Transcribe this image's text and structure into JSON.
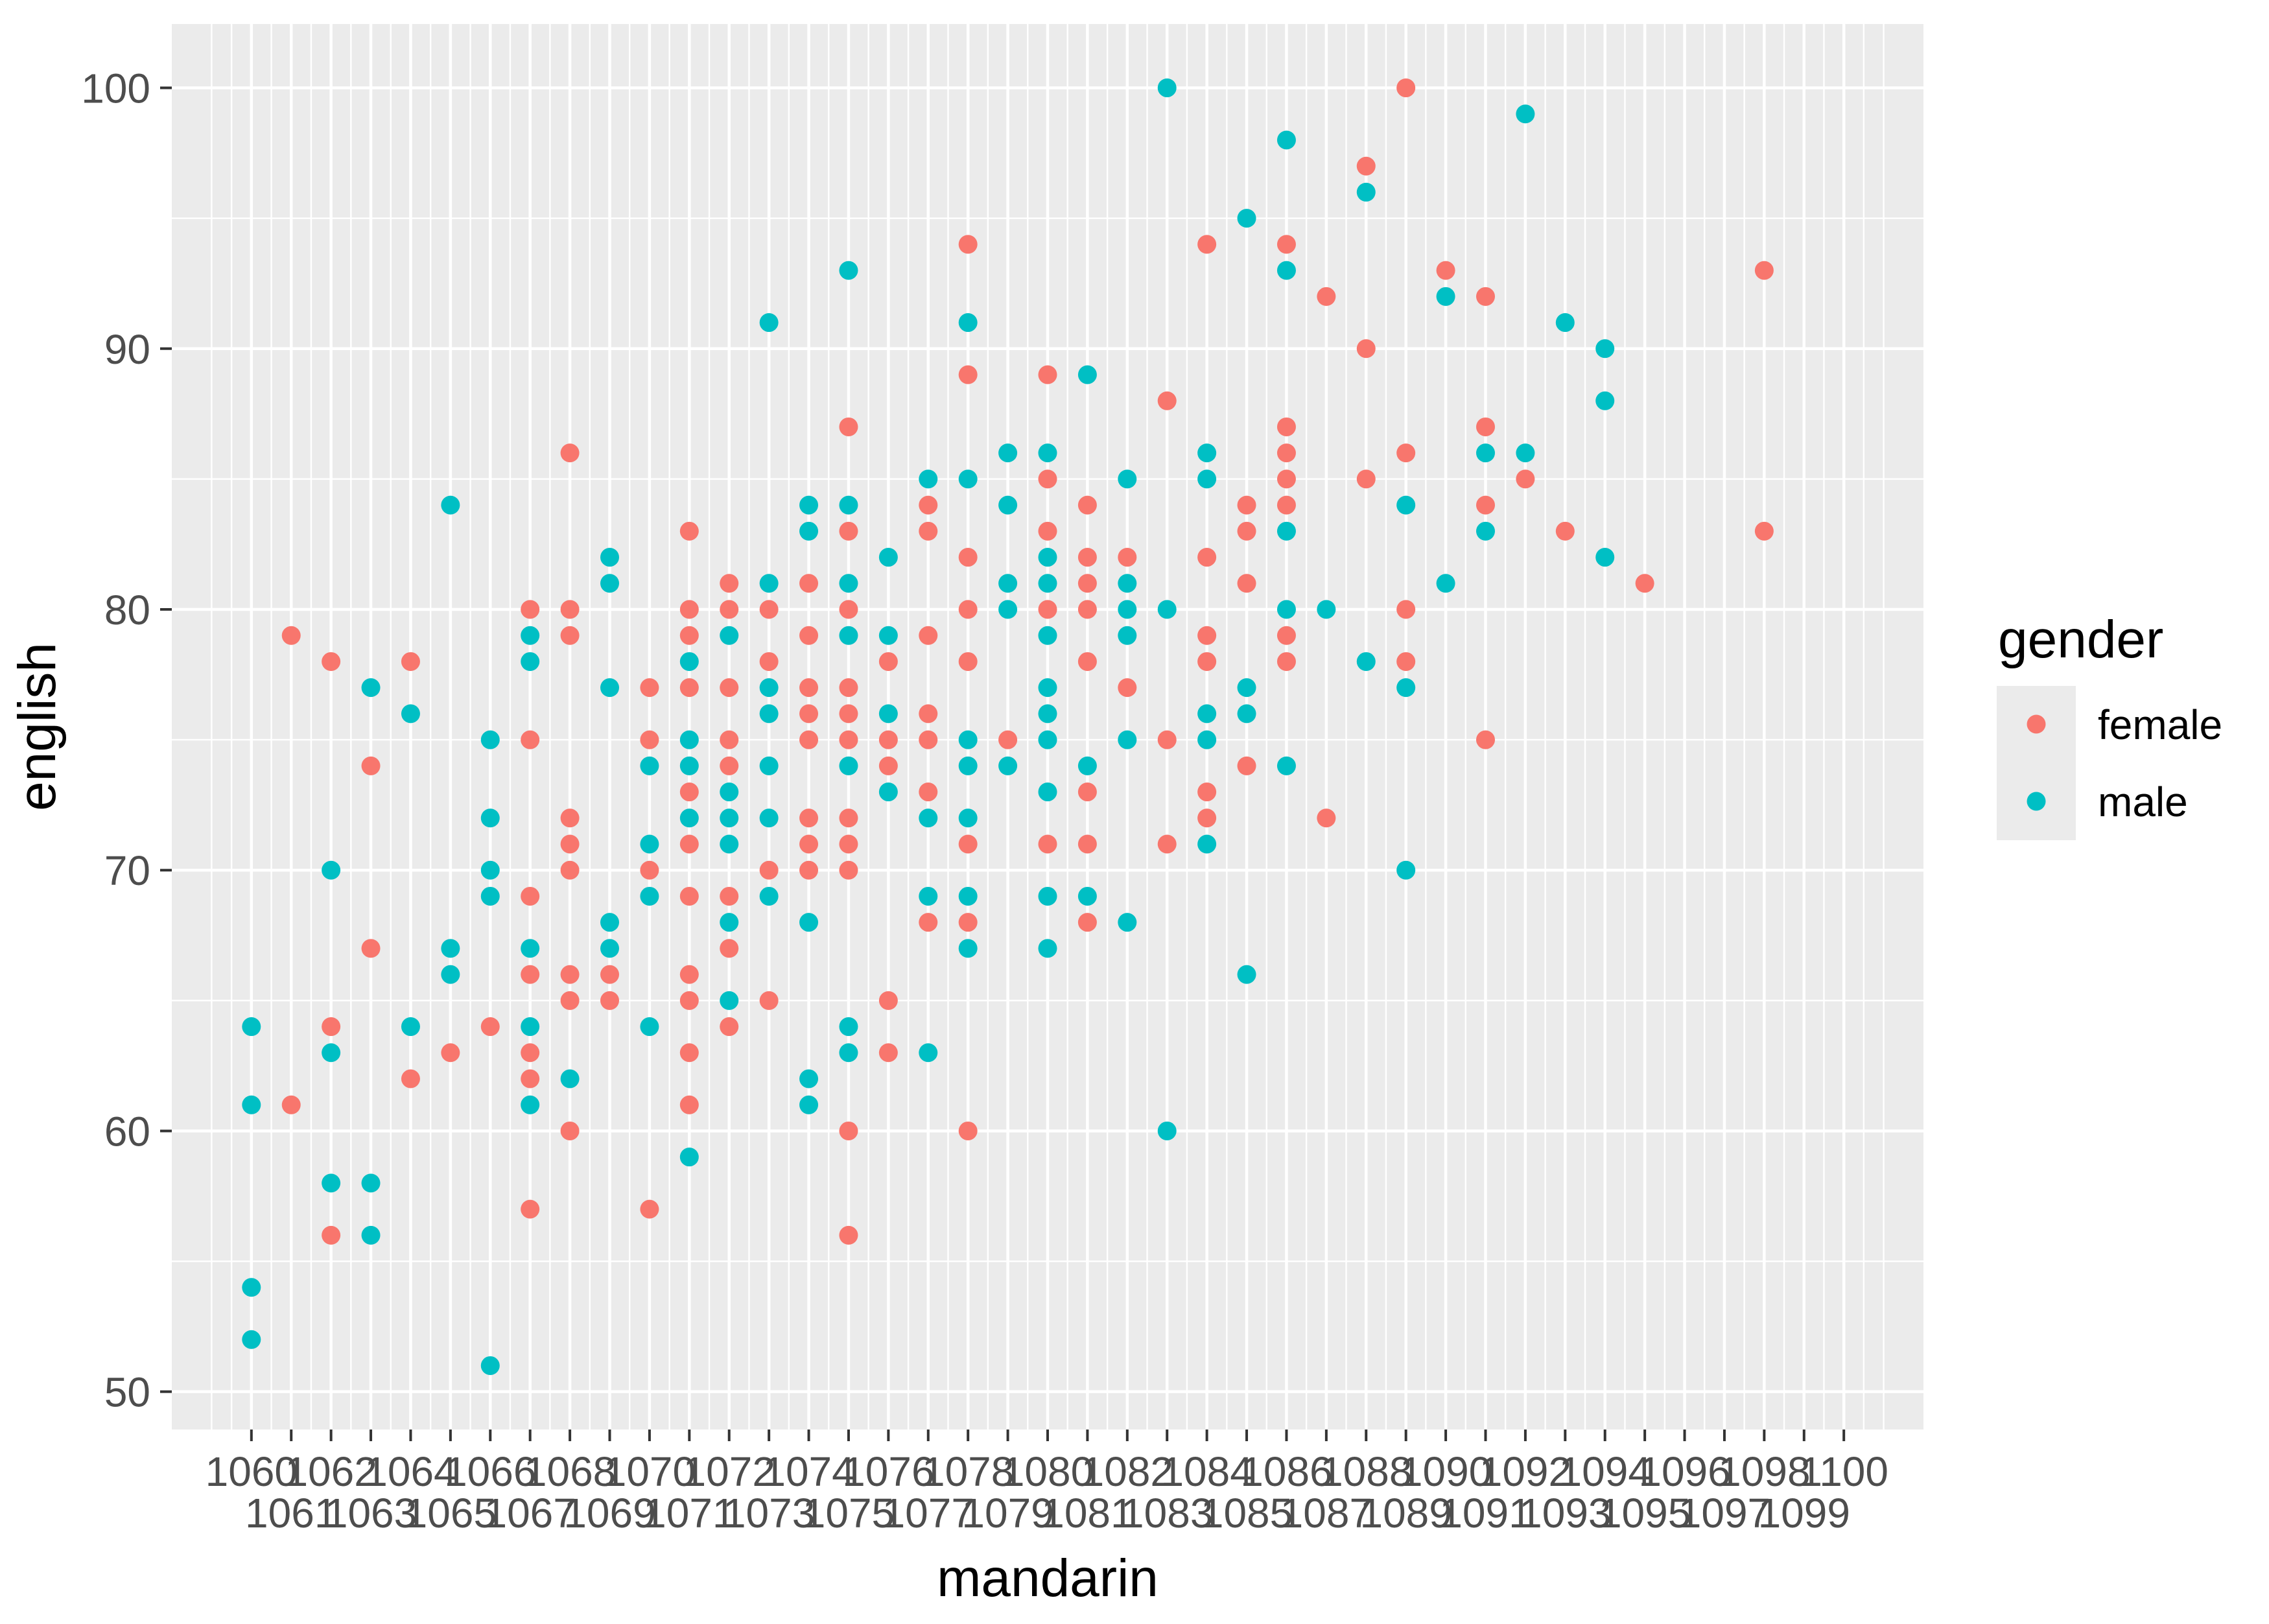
{
  "title": "",
  "colors": {
    "female": "#F8766D",
    "male": "#00BFC4",
    "panel_bg": "#EBEBEB",
    "grid": "#FFFFFF",
    "tick": "#333333",
    "tick_text": "#4D4D4D"
  },
  "legend": {
    "title": "gender",
    "items": [
      {
        "label": "female",
        "color": "#F8766D"
      },
      {
        "label": "male",
        "color": "#00BFC4"
      }
    ]
  },
  "chart_data": {
    "type": "scatter",
    "title": "",
    "xlabel": "mandarin",
    "ylabel": "english",
    "xlim": [
      1058,
      1102
    ],
    "ylim": [
      48.55,
      102.45
    ],
    "grid": "on",
    "legend_position": "right",
    "x_ticks": [
      1060,
      1061,
      1062,
      1063,
      1064,
      1065,
      1066,
      1067,
      1068,
      1069,
      1070,
      1071,
      1072,
      1073,
      1074,
      1075,
      1076,
      1077,
      1078,
      1079,
      1080,
      1081,
      1082,
      1083,
      1084,
      1085,
      1086,
      1087,
      1088,
      1089,
      1090,
      1091,
      1092,
      1093,
      1094,
      1095,
      1096,
      1097,
      1098,
      1099,
      1100
    ],
    "y_ticks": [
      50,
      60,
      70,
      80,
      90,
      100
    ],
    "series": [
      {
        "name": "female",
        "color": "#F8766D",
        "points": [
          [
            1061,
            79
          ],
          [
            1062,
            78
          ],
          [
            1064,
            78
          ],
          [
            1067,
            80
          ],
          [
            1068,
            86
          ],
          [
            1068,
            80
          ],
          [
            1068,
            79
          ],
          [
            1070,
            77
          ],
          [
            1071,
            83
          ],
          [
            1071,
            80
          ],
          [
            1071,
            79
          ],
          [
            1071,
            77
          ],
          [
            1072,
            81
          ],
          [
            1072,
            80
          ],
          [
            1072,
            77
          ],
          [
            1078,
            94
          ],
          [
            1084,
            94
          ],
          [
            1086,
            94
          ],
          [
            1087,
            92
          ],
          [
            1078,
            89
          ],
          [
            1080,
            89
          ],
          [
            1083,
            88
          ],
          [
            1075,
            87
          ],
          [
            1086,
            87
          ],
          [
            1086,
            86
          ],
          [
            1086,
            85
          ],
          [
            1080,
            85
          ],
          [
            1077,
            84
          ],
          [
            1081,
            84
          ],
          [
            1085,
            84
          ],
          [
            1086,
            84
          ],
          [
            1075,
            83
          ],
          [
            1077,
            83
          ],
          [
            1080,
            83
          ],
          [
            1085,
            83
          ],
          [
            1078,
            82
          ],
          [
            1081,
            82
          ],
          [
            1082,
            82
          ],
          [
            1084,
            82
          ],
          [
            1074,
            81
          ],
          [
            1081,
            81
          ],
          [
            1085,
            81
          ],
          [
            1073,
            80
          ],
          [
            1075,
            80
          ],
          [
            1078,
            80
          ],
          [
            1080,
            80
          ],
          [
            1081,
            80
          ],
          [
            1074,
            79
          ],
          [
            1077,
            79
          ],
          [
            1084,
            79
          ],
          [
            1086,
            79
          ],
          [
            1073,
            78
          ],
          [
            1076,
            78
          ],
          [
            1078,
            78
          ],
          [
            1081,
            78
          ],
          [
            1084,
            78
          ],
          [
            1086,
            78
          ],
          [
            1074,
            77
          ],
          [
            1075,
            77
          ],
          [
            1082,
            77
          ],
          [
            1074,
            76
          ],
          [
            1075,
            76
          ],
          [
            1077,
            76
          ],
          [
            1089,
            100
          ],
          [
            1088,
            97
          ],
          [
            1090,
            93
          ],
          [
            1098,
            93
          ],
          [
            1091,
            92
          ],
          [
            1088,
            90
          ],
          [
            1091,
            87
          ],
          [
            1089,
            86
          ],
          [
            1088,
            85
          ],
          [
            1092,
            85
          ],
          [
            1091,
            84
          ],
          [
            1093,
            83
          ],
          [
            1098,
            83
          ],
          [
            1095,
            81
          ],
          [
            1089,
            80
          ],
          [
            1089,
            78
          ],
          [
            1067,
            75
          ],
          [
            1070,
            75
          ],
          [
            1072,
            75
          ],
          [
            1063,
            74
          ],
          [
            1072,
            74
          ],
          [
            1071,
            73
          ],
          [
            1068,
            72
          ],
          [
            1068,
            71
          ],
          [
            1071,
            71
          ],
          [
            1068,
            70
          ],
          [
            1070,
            70
          ],
          [
            1067,
            69
          ],
          [
            1071,
            69
          ],
          [
            1072,
            69
          ],
          [
            1063,
            67
          ],
          [
            1072,
            67
          ],
          [
            1067,
            66
          ],
          [
            1068,
            66
          ],
          [
            1069,
            66
          ],
          [
            1071,
            66
          ],
          [
            1068,
            65
          ],
          [
            1069,
            65
          ],
          [
            1071,
            65
          ],
          [
            1062,
            64
          ],
          [
            1066,
            64
          ],
          [
            1072,
            64
          ],
          [
            1065,
            63
          ],
          [
            1067,
            63
          ],
          [
            1071,
            63
          ],
          [
            1064,
            62
          ],
          [
            1067,
            62
          ],
          [
            1061,
            61
          ],
          [
            1071,
            61
          ],
          [
            1068,
            60
          ],
          [
            1067,
            57
          ],
          [
            1070,
            57
          ],
          [
            1062,
            56
          ],
          [
            1074,
            75
          ],
          [
            1075,
            75
          ],
          [
            1076,
            75
          ],
          [
            1077,
            75
          ],
          [
            1079,
            75
          ],
          [
            1083,
            75
          ],
          [
            1076,
            74
          ],
          [
            1085,
            74
          ],
          [
            1077,
            73
          ],
          [
            1081,
            73
          ],
          [
            1084,
            73
          ],
          [
            1074,
            72
          ],
          [
            1075,
            72
          ],
          [
            1084,
            72
          ],
          [
            1087,
            72
          ],
          [
            1074,
            71
          ],
          [
            1075,
            71
          ],
          [
            1078,
            71
          ],
          [
            1080,
            71
          ],
          [
            1081,
            71
          ],
          [
            1083,
            71
          ],
          [
            1073,
            70
          ],
          [
            1074,
            70
          ],
          [
            1075,
            70
          ],
          [
            1077,
            68
          ],
          [
            1078,
            68
          ],
          [
            1081,
            68
          ],
          [
            1073,
            65
          ],
          [
            1076,
            65
          ],
          [
            1076,
            63
          ],
          [
            1075,
            60
          ],
          [
            1078,
            60
          ],
          [
            1075,
            56
          ],
          [
            1091,
            75
          ]
        ]
      },
      {
        "name": "male",
        "color": "#00BFC4",
        "points": [
          [
            1063,
            77
          ],
          [
            1064,
            76
          ],
          [
            1065,
            84
          ],
          [
            1067,
            79
          ],
          [
            1067,
            78
          ],
          [
            1069,
            82
          ],
          [
            1069,
            81
          ],
          [
            1069,
            77
          ],
          [
            1071,
            78
          ],
          [
            1072,
            79
          ],
          [
            1083,
            100
          ],
          [
            1086,
            98
          ],
          [
            1085,
            95
          ],
          [
            1075,
            93
          ],
          [
            1086,
            93
          ],
          [
            1073,
            91
          ],
          [
            1078,
            91
          ],
          [
            1081,
            89
          ],
          [
            1079,
            86
          ],
          [
            1080,
            86
          ],
          [
            1084,
            86
          ],
          [
            1077,
            85
          ],
          [
            1078,
            85
          ],
          [
            1082,
            85
          ],
          [
            1084,
            85
          ],
          [
            1074,
            84
          ],
          [
            1075,
            84
          ],
          [
            1079,
            84
          ],
          [
            1074,
            83
          ],
          [
            1086,
            83
          ],
          [
            1076,
            82
          ],
          [
            1080,
            82
          ],
          [
            1073,
            81
          ],
          [
            1075,
            81
          ],
          [
            1079,
            81
          ],
          [
            1080,
            81
          ],
          [
            1082,
            81
          ],
          [
            1079,
            80
          ],
          [
            1082,
            80
          ],
          [
            1083,
            80
          ],
          [
            1086,
            80
          ],
          [
            1087,
            80
          ],
          [
            1075,
            79
          ],
          [
            1076,
            79
          ],
          [
            1080,
            79
          ],
          [
            1082,
            79
          ],
          [
            1073,
            77
          ],
          [
            1080,
            77
          ],
          [
            1085,
            77
          ],
          [
            1073,
            76
          ],
          [
            1076,
            76
          ],
          [
            1080,
            76
          ],
          [
            1084,
            76
          ],
          [
            1085,
            76
          ],
          [
            1092,
            99
          ],
          [
            1088,
            96
          ],
          [
            1090,
            92
          ],
          [
            1093,
            91
          ],
          [
            1094,
            90
          ],
          [
            1094,
            88
          ],
          [
            1091,
            86
          ],
          [
            1092,
            86
          ],
          [
            1089,
            84
          ],
          [
            1091,
            83
          ],
          [
            1094,
            82
          ],
          [
            1090,
            81
          ],
          [
            1088,
            78
          ],
          [
            1089,
            77
          ],
          [
            1066,
            75
          ],
          [
            1071,
            75
          ],
          [
            1070,
            74
          ],
          [
            1071,
            74
          ],
          [
            1072,
            73
          ],
          [
            1066,
            72
          ],
          [
            1071,
            72
          ],
          [
            1072,
            72
          ],
          [
            1070,
            71
          ],
          [
            1072,
            71
          ],
          [
            1062,
            70
          ],
          [
            1066,
            70
          ],
          [
            1066,
            69
          ],
          [
            1070,
            69
          ],
          [
            1069,
            68
          ],
          [
            1072,
            68
          ],
          [
            1065,
            67
          ],
          [
            1067,
            67
          ],
          [
            1069,
            67
          ],
          [
            1065,
            66
          ],
          [
            1072,
            65
          ],
          [
            1060,
            64
          ],
          [
            1064,
            64
          ],
          [
            1067,
            64
          ],
          [
            1070,
            64
          ],
          [
            1062,
            63
          ],
          [
            1068,
            62
          ],
          [
            1060,
            61
          ],
          [
            1067,
            61
          ],
          [
            1071,
            59
          ],
          [
            1062,
            58
          ],
          [
            1063,
            58
          ],
          [
            1063,
            56
          ],
          [
            1060,
            54
          ],
          [
            1060,
            52
          ],
          [
            1066,
            51
          ],
          [
            1078,
            75
          ],
          [
            1080,
            75
          ],
          [
            1082,
            75
          ],
          [
            1084,
            75
          ],
          [
            1073,
            74
          ],
          [
            1075,
            74
          ],
          [
            1078,
            74
          ],
          [
            1079,
            74
          ],
          [
            1081,
            74
          ],
          [
            1086,
            74
          ],
          [
            1076,
            73
          ],
          [
            1080,
            73
          ],
          [
            1073,
            72
          ],
          [
            1077,
            72
          ],
          [
            1078,
            72
          ],
          [
            1084,
            71
          ],
          [
            1073,
            69
          ],
          [
            1077,
            69
          ],
          [
            1078,
            69
          ],
          [
            1080,
            69
          ],
          [
            1081,
            69
          ],
          [
            1074,
            68
          ],
          [
            1082,
            68
          ],
          [
            1078,
            67
          ],
          [
            1080,
            67
          ],
          [
            1085,
            66
          ],
          [
            1075,
            64
          ],
          [
            1075,
            63
          ],
          [
            1077,
            63
          ],
          [
            1074,
            62
          ],
          [
            1074,
            61
          ],
          [
            1083,
            60
          ],
          [
            1089,
            70
          ]
        ]
      }
    ]
  }
}
